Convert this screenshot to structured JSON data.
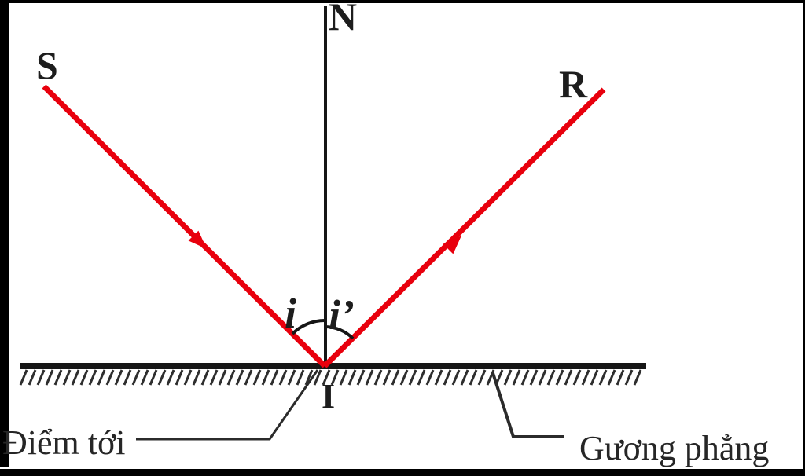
{
  "diagram": {
    "labels": {
      "incident_source": "S",
      "normal": "N",
      "reflected_ray": "R",
      "incidence_point": "I",
      "incidence_angle": "i",
      "reflection_angle": "i’",
      "incidence_point_caption": "Điểm tới",
      "mirror_caption": "Gương phẳng"
    },
    "colors": {
      "ray_red": "#e8000d",
      "line_black": "#161616",
      "frame_black": "#000000",
      "caption_text": "#262626"
    }
  }
}
